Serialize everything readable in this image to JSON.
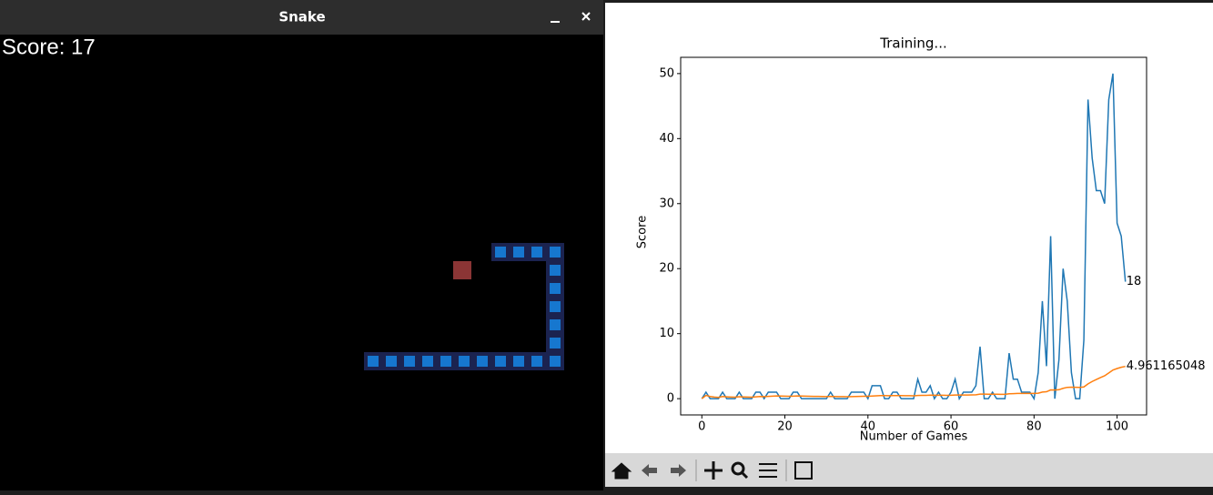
{
  "game": {
    "window_title": "Snake",
    "score_text": "Score: 17"
  },
  "chart_data": {
    "type": "line",
    "title": "Training...",
    "x_label": "Number of Games",
    "y_label": "Score",
    "x": [
      0,
      1,
      2,
      3,
      4,
      5,
      6,
      7,
      8,
      9,
      10,
      11,
      12,
      13,
      14,
      15,
      16,
      17,
      18,
      19,
      20,
      21,
      22,
      23,
      24,
      25,
      26,
      27,
      28,
      29,
      30,
      31,
      32,
      33,
      34,
      35,
      36,
      37,
      38,
      39,
      40,
      41,
      42,
      43,
      44,
      45,
      46,
      47,
      48,
      49,
      50,
      51,
      52,
      53,
      54,
      55,
      56,
      57,
      58,
      59,
      60,
      61,
      62,
      63,
      64,
      65,
      66,
      67,
      68,
      69,
      70,
      71,
      72,
      73,
      74,
      75,
      76,
      77,
      78,
      79,
      80,
      81,
      82,
      83,
      84,
      85,
      86,
      87,
      88,
      89,
      90,
      91,
      92,
      93,
      94,
      95,
      96,
      97,
      98,
      99,
      100,
      101,
      102
    ],
    "series": [
      {
        "color": "#1f77b4",
        "values": [
          0,
          1,
          0,
          0,
          0,
          1,
          0,
          0,
          0,
          1,
          0,
          0,
          0,
          1,
          1,
          0,
          1,
          1,
          1,
          0,
          0,
          0,
          1,
          1,
          0,
          0,
          0,
          0,
          0,
          0,
          0,
          1,
          0,
          0,
          0,
          0,
          1,
          1,
          1,
          1,
          0,
          2,
          2,
          2,
          0,
          0,
          1,
          1,
          0,
          0,
          0,
          0,
          3,
          1,
          1,
          2,
          0,
          1,
          0,
          0,
          1,
          3,
          0,
          1,
          1,
          1,
          2,
          8,
          0,
          0,
          1,
          0,
          0,
          0,
          7,
          3,
          3,
          1,
          1,
          1,
          0,
          4,
          15,
          5,
          25,
          0,
          6,
          20,
          15,
          4,
          0,
          0,
          9,
          46,
          37,
          32,
          32,
          30,
          46,
          50,
          27,
          25,
          18
        ]
      },
      {
        "color": "#ff7f0e",
        "values": [
          0,
          0.5,
          0.333,
          0.25,
          0.2,
          0.333,
          0.286,
          0.25,
          0.222,
          0.3,
          0.273,
          0.25,
          0.231,
          0.286,
          0.333,
          0.3125,
          0.353,
          0.389,
          0.421,
          0.4,
          0.381,
          0.364,
          0.391,
          0.417,
          0.4,
          0.385,
          0.37,
          0.357,
          0.345,
          0.333,
          0.323,
          0.344,
          0.333,
          0.324,
          0.314,
          0.306,
          0.324,
          0.342,
          0.359,
          0.375,
          0.366,
          0.405,
          0.442,
          0.477,
          0.467,
          0.457,
          0.468,
          0.479,
          0.469,
          0.46,
          0.451,
          0.442,
          0.491,
          0.5,
          0.509,
          0.536,
          0.526,
          0.534,
          0.525,
          0.517,
          0.525,
          0.565,
          0.556,
          0.5625,
          0.569,
          0.576,
          0.597,
          0.706,
          0.696,
          0.686,
          0.69,
          0.681,
          0.671,
          0.662,
          0.747,
          0.776,
          0.805,
          0.808,
          0.81,
          0.8125,
          0.802,
          0.841,
          1.012,
          1.06,
          1.341,
          1.326,
          1.379,
          1.591,
          1.742,
          1.767,
          1.747,
          1.728,
          1.806,
          2.277,
          2.642,
          2.948,
          3.247,
          3.52,
          3.949,
          4.41,
          4.634,
          4.833,
          4.961165048543689
        ]
      }
    ],
    "annotations": [
      "18",
      "4.961165048"
    ],
    "xlim": [
      -5.1,
      107.1
    ],
    "ylim": [
      -2.5,
      52.5
    ],
    "xticks": [
      0,
      20,
      40,
      60,
      80,
      100
    ],
    "yticks": [
      0,
      10,
      20,
      30,
      40,
      50
    ],
    "grid": false
  }
}
